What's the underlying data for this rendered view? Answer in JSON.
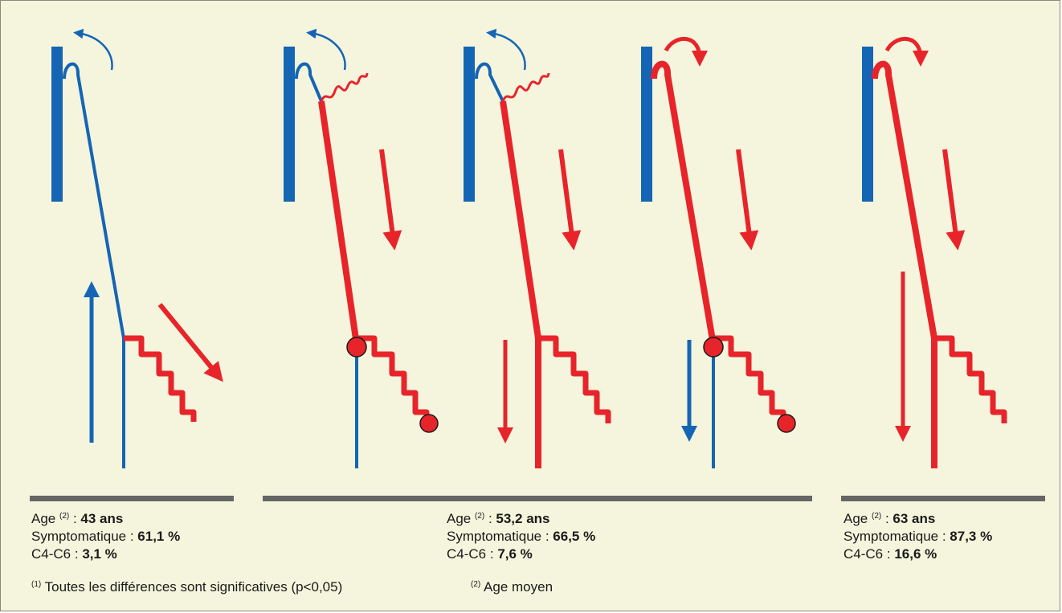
{
  "colors": {
    "blue": "#1565b5",
    "red": "#e8242b",
    "background": "#f5f5dd",
    "separator": "#666666"
  },
  "groups": [
    {
      "age_label": "Age",
      "age_sup": "(2)",
      "age_value": "43 ans",
      "symp_label": "Symptomatique :",
      "symp_value": "61,1 %",
      "c4c6_label": "C4-C6 :",
      "c4c6_value": "3,1 %"
    },
    {
      "age_label": "Age",
      "age_sup": "(2)",
      "age_value": "53,2 ans",
      "symp_label": "Symptomatique :",
      "symp_value": "66,5 %",
      "c4c6_label": "C4-C6 :",
      "c4c6_value": "7,6 %"
    },
    {
      "age_label": "Age",
      "age_sup": "(2)",
      "age_value": "63 ans",
      "symp_label": "Symptomatique :",
      "symp_value": "87,3 %",
      "c4c6_label": "C4-C6 :",
      "c4c6_value": "16,6 %"
    }
  ],
  "footnotes": {
    "note1_marker": "(1)",
    "note1_text": "Toutes les différences sont significatives (p<0,05)",
    "note2_marker": "(2)",
    "note2_text": "Age moyen"
  }
}
